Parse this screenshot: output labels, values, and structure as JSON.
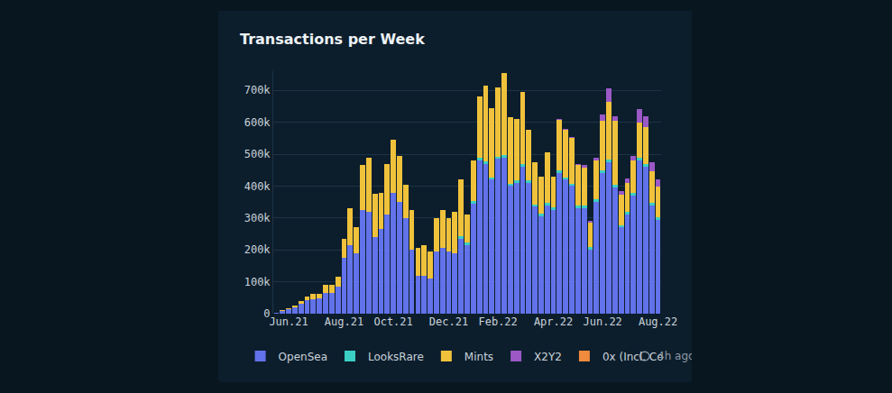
{
  "chart_data": {
    "type": "bar",
    "title": "Transactions per Week",
    "categories": [
      null,
      null,
      "Jun.21",
      null,
      null,
      null,
      null,
      null,
      null,
      null,
      null,
      "Aug.21",
      null,
      null,
      null,
      null,
      null,
      null,
      null,
      "Oct.21",
      null,
      null,
      null,
      null,
      null,
      null,
      null,
      null,
      "Dec.21",
      null,
      null,
      null,
      null,
      null,
      null,
      null,
      "Feb.22",
      null,
      null,
      null,
      null,
      null,
      null,
      null,
      null,
      "Apr.22",
      null,
      null,
      null,
      null,
      null,
      null,
      null,
      "Jun.22",
      null,
      null,
      null,
      null,
      null,
      null,
      null,
      null,
      "Aug.22"
    ],
    "series": [
      {
        "name": "OpenSea",
        "color": "#6272ea",
        "values": [
          3000,
          8000,
          14000,
          20000,
          32000,
          42000,
          45000,
          48000,
          65000,
          65000,
          85000,
          175000,
          215000,
          190000,
          325000,
          320000,
          240000,
          265000,
          310000,
          380000,
          350000,
          300000,
          200000,
          120000,
          120000,
          110000,
          195000,
          205000,
          195000,
          190000,
          235000,
          215000,
          345000,
          480000,
          470000,
          420000,
          485000,
          490000,
          400000,
          410000,
          460000,
          410000,
          335000,
          305000,
          340000,
          325000,
          440000,
          420000,
          400000,
          330000,
          330000,
          200000,
          350000,
          440000,
          475000,
          395000,
          270000,
          310000,
          370000,
          480000,
          460000,
          340000,
          295000
        ]
      },
      {
        "name": "LooksRare",
        "color": "#3ccfc4",
        "values": [
          0,
          0,
          0,
          0,
          0,
          0,
          0,
          0,
          0,
          0,
          0,
          0,
          0,
          0,
          0,
          0,
          0,
          0,
          0,
          0,
          0,
          0,
          0,
          0,
          0,
          0,
          0,
          0,
          0,
          0,
          8000,
          8000,
          8000,
          8000,
          8000,
          8000,
          8000,
          8000,
          8000,
          8000,
          8000,
          8000,
          8000,
          8000,
          8000,
          8000,
          8000,
          8000,
          8000,
          8000,
          8000,
          8000,
          8000,
          8000,
          8000,
          8000,
          8000,
          8000,
          8000,
          8000,
          8000,
          8000,
          8000
        ]
      },
      {
        "name": "Mints",
        "color": "#f0c23b",
        "values": [
          0,
          2000,
          4000,
          5000,
          8000,
          13000,
          17000,
          14000,
          25000,
          25000,
          30000,
          60000,
          115000,
          80000,
          140000,
          170000,
          135000,
          115000,
          160000,
          165000,
          145000,
          105000,
          125000,
          85000,
          95000,
          85000,
          105000,
          120000,
          105000,
          130000,
          177000,
          87000,
          127000,
          192000,
          237000,
          217000,
          217000,
          257000,
          207000,
          192000,
          227000,
          157000,
          132000,
          117000,
          157000,
          97000,
          159000,
          148000,
          142000,
          127000,
          121000,
          77000,
          122000,
          157000,
          182000,
          202000,
          95000,
          92000,
          102000,
          112000,
          117000,
          97000,
          95000
        ]
      },
      {
        "name": "X2Y2",
        "color": "#9b59c6",
        "values": [
          0,
          0,
          0,
          0,
          0,
          0,
          0,
          0,
          0,
          0,
          0,
          0,
          0,
          0,
          0,
          0,
          0,
          0,
          0,
          0,
          0,
          0,
          0,
          0,
          0,
          0,
          0,
          0,
          0,
          0,
          0,
          0,
          0,
          0,
          0,
          0,
          0,
          0,
          0,
          0,
          0,
          0,
          0,
          0,
          0,
          0,
          3000,
          4000,
          5000,
          5000,
          6000,
          5000,
          10000,
          20000,
          40000,
          15000,
          12000,
          15000,
          15000,
          40000,
          35000,
          30000,
          22000
        ]
      },
      {
        "name": "0x (Incl. Co",
        "color": "#f08a3c",
        "values": [
          0,
          0,
          0,
          0,
          0,
          0,
          0,
          0,
          0,
          0,
          0,
          0,
          0,
          0,
          0,
          0,
          0,
          0,
          0,
          0,
          0,
          0,
          0,
          0,
          0,
          0,
          0,
          0,
          0,
          0,
          0,
          0,
          0,
          0,
          0,
          0,
          0,
          0,
          0,
          0,
          0,
          0,
          0,
          0,
          0,
          0,
          0,
          0,
          0,
          0,
          0,
          0,
          0,
          0,
          0,
          0,
          0,
          0,
          0,
          0,
          0,
          0,
          0
        ]
      }
    ],
    "ylim": [
      0,
      760000
    ],
    "yticks": [
      0,
      {
        "value": 100000,
        "label": "100k"
      },
      {
        "value": 200000,
        "label": "200k"
      },
      {
        "value": 300000,
        "label": "300k"
      },
      {
        "value": 400000,
        "label": "400k"
      },
      {
        "value": 500000,
        "label": "500k"
      },
      {
        "value": 600000,
        "label": "600k"
      },
      {
        "value": 700000,
        "label": "700k"
      }
    ],
    "grid": true,
    "stacked": true,
    "legend": "bottom",
    "annotations": [
      "4h ago"
    ]
  }
}
